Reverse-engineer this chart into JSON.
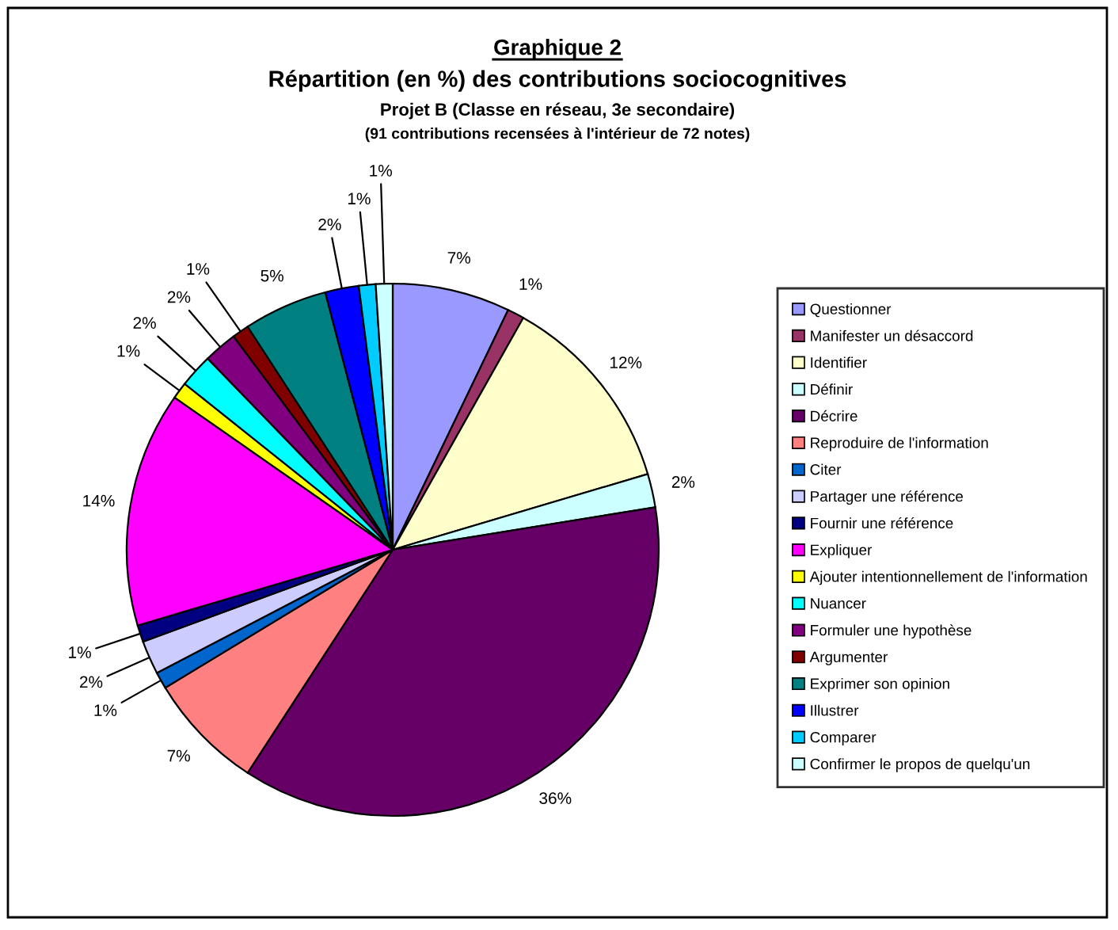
{
  "chart_data": {
    "type": "pie",
    "title": "Graphique 2",
    "subtitle": "Répartition (en %) des contributions sociocognitives\nProjet B (Classe en réseau, 3e secondaire)\n(91 contributions recensées à l'intérieur de 72 notes)",
    "categories": [
      "Questionner",
      "Manifester un désaccord",
      "Identifier",
      "Définir",
      "Décrire",
      "Reproduire de l'information",
      "Citer",
      "Partager une référence",
      "Fournir une référence",
      "Expliquer",
      "Ajouter intentionnellement de l'information",
      "Nuancer",
      "Formuler une hypothèse",
      "Argumenter",
      "Exprimer son opinion",
      "Illustrer",
      "Comparer",
      "Confirmer le propos de quelqu'un"
    ],
    "values": [
      7,
      1,
      12,
      2,
      36,
      7,
      1,
      2,
      1,
      14,
      1,
      2,
      2,
      1,
      5,
      2,
      1,
      1
    ],
    "value_labels": [
      "7%",
      "1%",
      "12%",
      "2%",
      "36%",
      "7%",
      "1%",
      "2%",
      "1%",
      "14%",
      "1%",
      "2%",
      "2%",
      "1%",
      "5%",
      "2%",
      "1%",
      "1%"
    ],
    "colors": [
      "#9999ff",
      "#993366",
      "#ffffcc",
      "#ccffff",
      "#660066",
      "#ff8080",
      "#0066cc",
      "#ccccff",
      "#000080",
      "#ff00ff",
      "#ffff00",
      "#00ffff",
      "#800080",
      "#800000",
      "#008080",
      "#0000ff",
      "#00ccff",
      "#ccffff"
    ],
    "legend": "right"
  }
}
